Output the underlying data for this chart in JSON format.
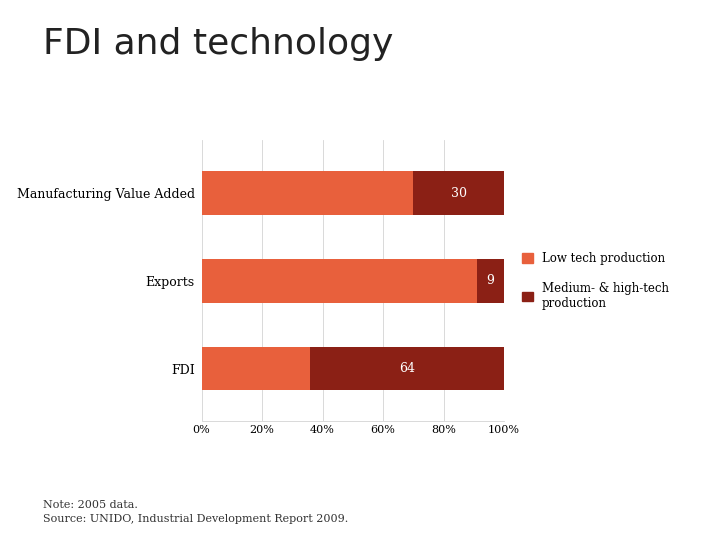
{
  "title": "FDI and technology",
  "categories": [
    "FDI",
    "Exports",
    "Manufacturing Value Added"
  ],
  "low_tech": [
    36,
    91,
    70
  ],
  "high_tech": [
    64,
    9,
    30
  ],
  "low_tech_color": "#E8603C",
  "high_tech_color": "#8B2015",
  "legend_low": "Low tech production",
  "legend_high": "Medium- & high-tech\nproduction",
  "note": "Note: 2005 data.\nSource: UNIDO, Industrial Development Report 2009.",
  "xlim": [
    0,
    100
  ],
  "xticks": [
    0,
    20,
    40,
    60,
    80,
    100
  ],
  "xticklabels": [
    "0%",
    "20%",
    "40%",
    "60%",
    "80%",
    "100%"
  ],
  "background_color": "#ffffff",
  "title_fontsize": 26,
  "label_fontsize": 9,
  "tick_fontsize": 8,
  "note_fontsize": 8,
  "bar_height": 0.5,
  "label_values": [
    64,
    9,
    30
  ]
}
